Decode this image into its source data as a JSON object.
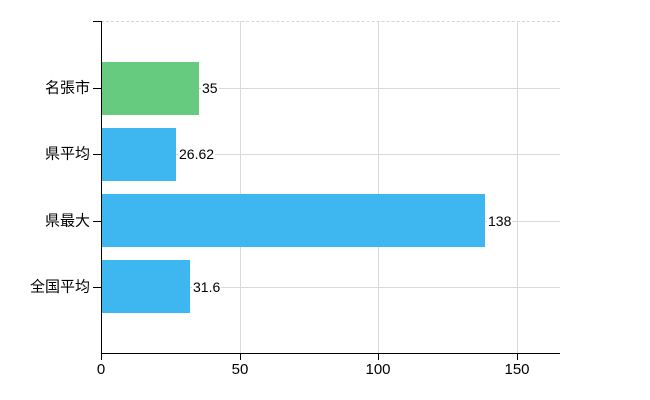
{
  "chart_data": {
    "type": "bar",
    "orientation": "horizontal",
    "title": "",
    "categories": [
      "名張市",
      "県平均",
      "県最大",
      "全国平均"
    ],
    "values": [
      35,
      26.62,
      138,
      31.6
    ],
    "value_labels": [
      "35",
      "26.62",
      "138",
      "31.6"
    ],
    "bar_colors": [
      "#66cb7f",
      "#3eb7f0",
      "#3eb7f0",
      "#3eb7f0"
    ],
    "x_ticks": [
      0,
      50,
      100,
      150
    ],
    "x_tick_labels": [
      "0",
      "50",
      "100",
      "150"
    ],
    "xlim": [
      0,
      165.5
    ],
    "grid": true,
    "legend": false,
    "axis_color": "#000000",
    "grid_color": "#d9d9d9",
    "text_color": "#000000",
    "background": "#ffffff"
  }
}
